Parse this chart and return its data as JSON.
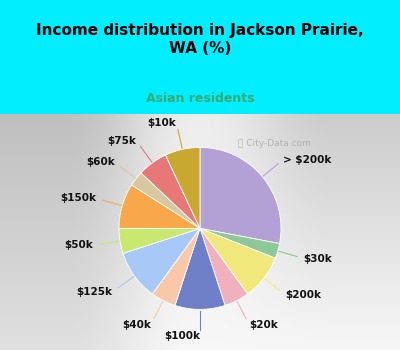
{
  "title": "Income distribution in Jackson Prairie,\nWA (%)",
  "subtitle": "Asian residents",
  "title_color": "#000000",
  "subtitle_color": "#3aaa70",
  "bg_cyan": "#00eeff",
  "chart_bg_top": "#e8f8f8",
  "chart_bg_bottom": "#c8eecc",
  "watermark": "City-Data.com",
  "title_fontsize": 11,
  "subtitle_fontsize": 9,
  "slices": [
    {
      "label": "> $200k",
      "value": 28,
      "color": "#b3a0d4"
    },
    {
      "label": "$30k",
      "value": 3,
      "color": "#8ec898"
    },
    {
      "label": "$200k",
      "value": 9,
      "color": "#f0e87a"
    },
    {
      "label": "$20k",
      "value": 5,
      "color": "#f0b0bc"
    },
    {
      "label": "$100k",
      "value": 10,
      "color": "#7080c8"
    },
    {
      "label": "$40k",
      "value": 5,
      "color": "#f8c8a8"
    },
    {
      "label": "$125k",
      "value": 10,
      "color": "#a8c8f8"
    },
    {
      "label": "$50k",
      "value": 5,
      "color": "#c8e870"
    },
    {
      "label": "$150k",
      "value": 9,
      "color": "#f8a84a"
    },
    {
      "label": "$60k",
      "value": 3,
      "color": "#d8c8a0"
    },
    {
      "label": "$75k",
      "value": 6,
      "color": "#e87878"
    },
    {
      "label": "$10k",
      "value": 7,
      "color": "#c8a830"
    }
  ],
  "label_fontsize": 7.5,
  "label_color": "#111111"
}
